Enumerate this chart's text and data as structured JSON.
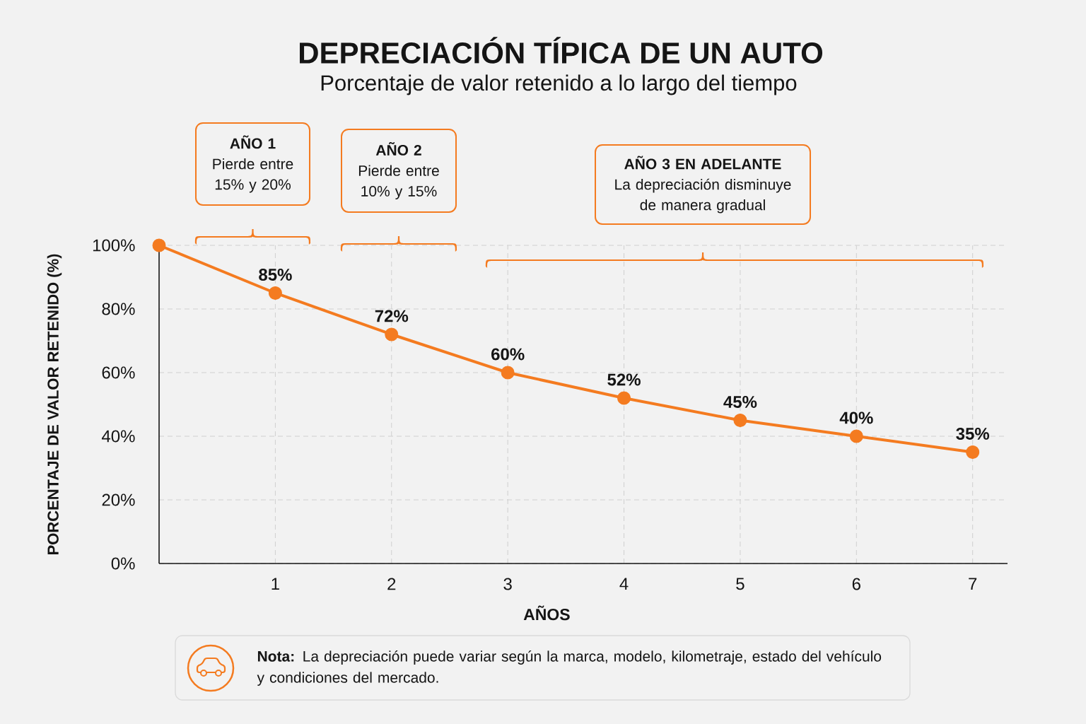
{
  "chart_data": {
    "type": "line",
    "title": "DEPRECIACIÓN TÍPICA DE UN AUTO",
    "subtitle": "Porcentaje de valor retenido a lo largo del tiempo",
    "xlabel": "AÑOS",
    "ylabel": "PORCENTAJE DE VALOR RETENIDO (%)",
    "x": [
      0,
      1,
      2,
      3,
      4,
      5,
      6,
      7
    ],
    "values": [
      100,
      85,
      72,
      60,
      52,
      45,
      40,
      35
    ],
    "value_labels": [
      null,
      "85%",
      "72%",
      "60%",
      "52%",
      "45%",
      "40%",
      "35%"
    ],
    "color": "#f47b20",
    "marker": "circle",
    "line_style": "solid",
    "xlim": [
      0,
      7.3
    ],
    "xticks": [
      1,
      2,
      3,
      4,
      5,
      6,
      7
    ],
    "ylim": [
      0,
      100
    ],
    "yticks": [
      {
        "value": 0,
        "label": "0%"
      },
      {
        "value": 20,
        "label": "20%"
      },
      {
        "value": 40,
        "label": "40%"
      },
      {
        "value": 60,
        "label": "60%"
      },
      {
        "value": 80,
        "label": "80%"
      },
      {
        "value": 100,
        "label": "100%"
      }
    ],
    "grid": true,
    "annotations": [
      "**AÑO 1** Pierde entre 15% y 20%",
      "**AÑO 2** Pierde entre 10% y 15%",
      "**AÑO 3 EN ADELANTE** La depreciación disminuye de manera gradual",
      "**Nota:** La depreciación puede variar según la marca, modelo, kilometraje, estado del vehículo y condiciones del mercado."
    ]
  }
}
